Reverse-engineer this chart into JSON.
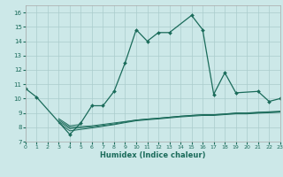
{
  "xlabel": "Humidex (Indice chaleur)",
  "bg_color": "#cce8e8",
  "grid_color": "#aacccc",
  "line_color": "#1a6b5a",
  "xlim": [
    0,
    23
  ],
  "ylim": [
    7,
    16.5
  ],
  "xticks": [
    0,
    1,
    2,
    3,
    4,
    5,
    6,
    7,
    8,
    9,
    10,
    11,
    12,
    13,
    14,
    15,
    16,
    17,
    18,
    19,
    20,
    21,
    22,
    23
  ],
  "yticks": [
    7,
    8,
    9,
    10,
    11,
    12,
    13,
    14,
    15,
    16
  ],
  "series": [
    [
      10.7,
      10.1,
      null,
      null,
      7.5,
      8.3,
      9.5,
      9.5,
      10.5,
      12.5,
      14.8,
      14.0,
      14.6,
      14.6,
      null,
      15.8,
      14.8,
      10.3,
      11.8,
      10.4,
      null,
      10.5,
      9.8,
      10.0
    ],
    [
      null,
      null,
      null,
      8.6,
      8.1,
      8.2,
      null,
      null,
      null,
      null,
      null,
      null,
      null,
      null,
      null,
      null,
      null,
      null,
      null,
      null,
      null,
      null,
      null,
      null
    ],
    [
      null,
      null,
      null,
      8.5,
      8.0,
      8.05,
      8.1,
      8.2,
      8.3,
      8.4,
      8.5,
      8.57,
      8.63,
      8.7,
      8.77,
      8.83,
      8.88,
      8.88,
      8.93,
      9.0,
      9.0,
      9.05,
      9.08,
      9.12
    ],
    [
      null,
      null,
      null,
      8.4,
      7.9,
      7.96,
      8.03,
      8.13,
      8.23,
      8.37,
      8.5,
      8.57,
      8.63,
      8.7,
      8.77,
      8.82,
      8.87,
      8.87,
      8.92,
      8.97,
      8.97,
      9.02,
      9.05,
      9.08
    ],
    [
      null,
      null,
      null,
      8.3,
      7.75,
      7.85,
      7.95,
      8.07,
      8.18,
      8.32,
      8.45,
      8.52,
      8.58,
      8.65,
      8.72,
      8.77,
      8.82,
      8.82,
      8.88,
      8.93,
      8.93,
      8.98,
      9.01,
      9.05
    ]
  ]
}
